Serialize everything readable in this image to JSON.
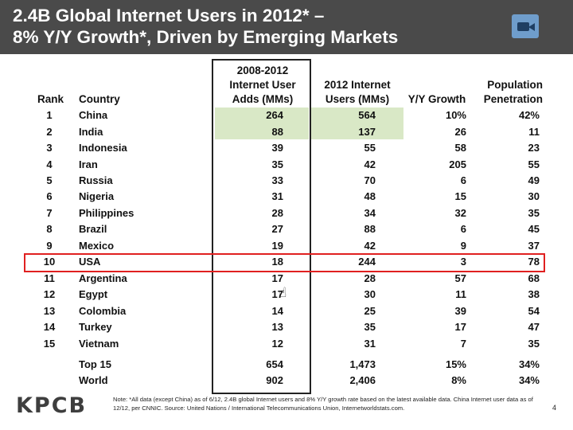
{
  "header": {
    "title": "2.4B Global Internet Users in 2012* –\n8% Y/Y Growth*, Driven by Emerging Markets",
    "video_icon": "video-camera-icon"
  },
  "table": {
    "headers": {
      "rank": "Rank",
      "country": "Country",
      "adds": "2008-2012\nInternet User\nAdds (MMs)",
      "users": "2012 Internet\nUsers (MMs)",
      "growth": "Y/Y Growth",
      "penetration": "Population\nPenetration"
    },
    "rows": [
      {
        "rank": "1",
        "country": "China",
        "adds": "264",
        "users": "564",
        "growth": "10%",
        "penetration": "42%"
      },
      {
        "rank": "2",
        "country": "India",
        "adds": "88",
        "users": "137",
        "growth": "26",
        "penetration": "11"
      },
      {
        "rank": "3",
        "country": "Indonesia",
        "adds": "39",
        "users": "55",
        "growth": "58",
        "penetration": "23"
      },
      {
        "rank": "4",
        "country": "Iran",
        "adds": "35",
        "users": "42",
        "growth": "205",
        "penetration": "55"
      },
      {
        "rank": "5",
        "country": "Russia",
        "adds": "33",
        "users": "70",
        "growth": "6",
        "penetration": "49"
      },
      {
        "rank": "6",
        "country": "Nigeria",
        "adds": "31",
        "users": "48",
        "growth": "15",
        "penetration": "30"
      },
      {
        "rank": "7",
        "country": "Philippines",
        "adds": "28",
        "users": "34",
        "growth": "32",
        "penetration": "35"
      },
      {
        "rank": "8",
        "country": "Brazil",
        "adds": "27",
        "users": "88",
        "growth": "6",
        "penetration": "45"
      },
      {
        "rank": "9",
        "country": "Mexico",
        "adds": "19",
        "users": "42",
        "growth": "9",
        "penetration": "37"
      },
      {
        "rank": "10",
        "country": "USA",
        "adds": "18",
        "users": "244",
        "growth": "3",
        "penetration": "78"
      },
      {
        "rank": "11",
        "country": "Argentina",
        "adds": "17",
        "users": "28",
        "growth": "57",
        "penetration": "68"
      },
      {
        "rank": "12",
        "country": "Egypt",
        "adds": "17",
        "users": "30",
        "growth": "11",
        "penetration": "38"
      },
      {
        "rank": "13",
        "country": "Colombia",
        "adds": "14",
        "users": "25",
        "growth": "39",
        "penetration": "54"
      },
      {
        "rank": "14",
        "country": "Turkey",
        "adds": "13",
        "users": "35",
        "growth": "17",
        "penetration": "47"
      },
      {
        "rank": "15",
        "country": "Vietnam",
        "adds": "12",
        "users": "31",
        "growth": "7",
        "penetration": "35"
      }
    ],
    "totals": [
      {
        "label": "Top 15",
        "adds": "654",
        "users": "1,473",
        "growth": "15%",
        "penetration": "34%"
      },
      {
        "label": "World",
        "adds": "902",
        "users": "2,406",
        "growth": "8%",
        "penetration": "34%"
      }
    ]
  },
  "footer": {
    "logo": "KPCB",
    "note": "Note: *All data (except China) as of 6/12, 2.4B global Internet users and 8% Y/Y growth rate based on the latest available data. China Internet user data as of 12/12, per CNNIC. Source: United Nations / International Telecommunications Union, Internetworldstats.com.",
    "page": "4"
  },
  "colors": {
    "header_bg": "#4a4a4a",
    "highlight": "#d9e8c6",
    "usa_border": "#e02020",
    "camera": "#6f9dcb"
  }
}
